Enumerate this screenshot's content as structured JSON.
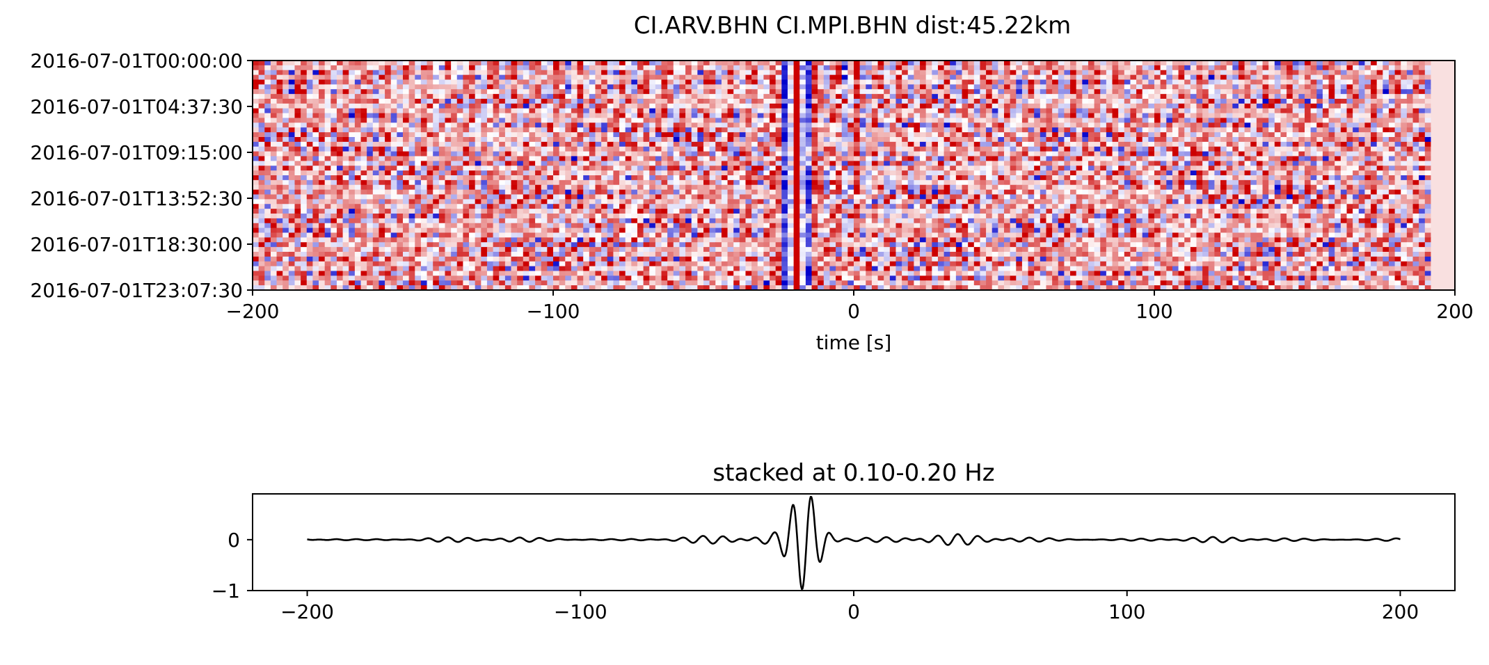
{
  "chart_data": [
    {
      "type": "heatmap",
      "title": "CI.ARV.BHN  CI.MPI.BHN  dist:45.22km",
      "xlabel": "time [s]",
      "ylabel": "",
      "xlim": [
        -200,
        200
      ],
      "x_ticks": [
        -200,
        -100,
        0,
        100,
        200
      ],
      "x_tick_labels": [
        "−200",
        "−100",
        "0",
        "100",
        "200"
      ],
      "y_tick_labels": [
        "2016-07-01T00:00:00",
        "2016-07-01T04:37:30",
        "2016-07-01T09:15:00",
        "2016-07-01T13:52:30",
        "2016-07-01T18:30:00",
        "2016-07-01T23:07:30"
      ],
      "colormap": "seismic",
      "color_negative": "#0000cc",
      "color_zero": "#ffffff",
      "color_positive": "#cc0000"
    },
    {
      "type": "line",
      "title": "stacked at 0.10-0.20 Hz",
      "xlabel": "",
      "ylabel": "",
      "xlim": [
        -220,
        220
      ],
      "ylim": [
        -1,
        0.9
      ],
      "x_ticks": [
        -200,
        -100,
        0,
        100,
        200
      ],
      "x_tick_labels": [
        "−200",
        "−100",
        "0",
        "100",
        "200"
      ],
      "y_ticks": [
        0,
        -1
      ],
      "y_tick_labels": [
        "0",
        "−1"
      ],
      "line_color": "#000000",
      "x_range": [
        -200,
        200
      ]
    }
  ]
}
